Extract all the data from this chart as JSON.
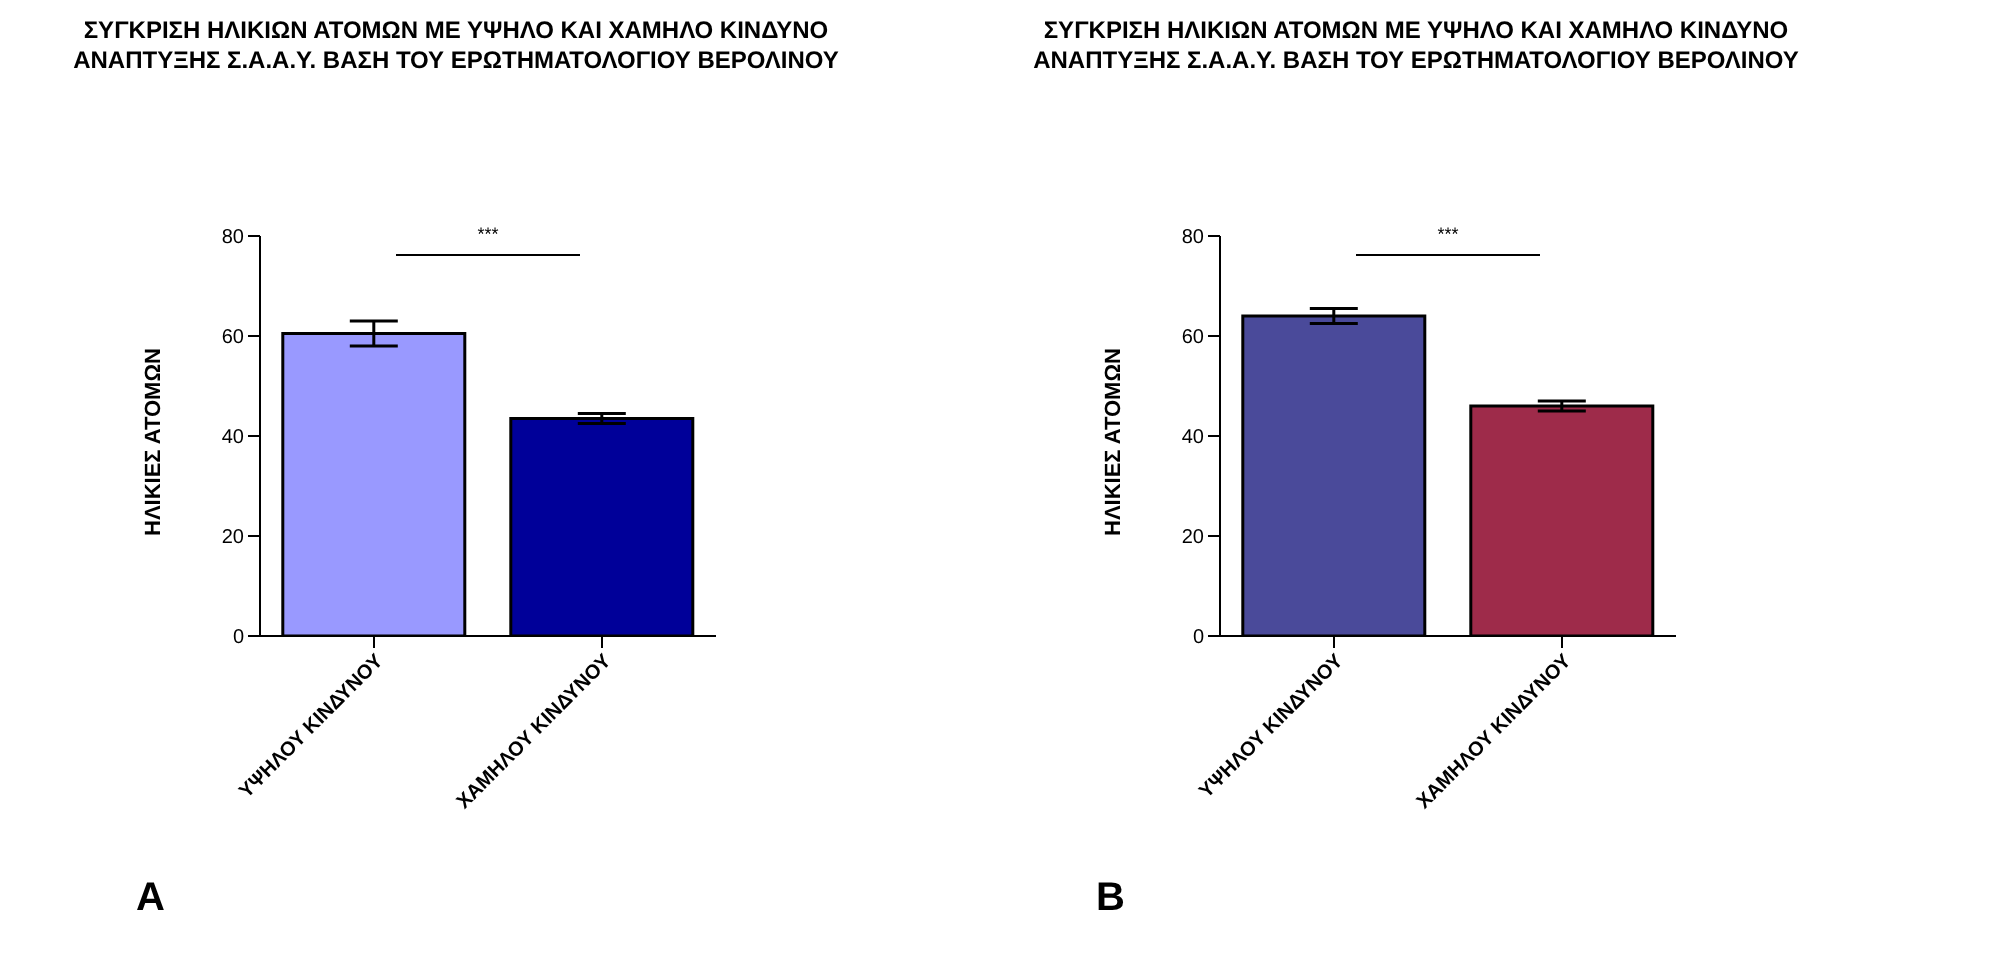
{
  "chart_data": [
    {
      "type": "bar",
      "title": "ΣΥΓΚΡΙΣΗ ΗΛΙΚΙΩΝ ΑΤΟΜΩΝ ΜΕ ΥΨΗΛΟ ΚΑΙ ΧΑΜΗΛΟ ΚΙΝΔΥΝΟ ΑΝΑΠΤΥΞΗΣ Σ.Α.Α.Υ. ΒΑΣΗ ΤΟΥ ΕΡΩΤΗΜΑΤΟΛΟΓΙΟΥ ΒΕΡΟΛΙΝΟΥ",
      "ylabel": "ΗΛΙΚΙΕΣ ΑΤΟΜΩΝ",
      "categories": [
        "ΥΨΗΛΟΥ ΚΙΝΔΥΝΟΥ",
        "ΧΑΜΗΛΟΥ ΚΙΝΔΥΝΟΥ"
      ],
      "values": [
        60.5,
        43.5
      ],
      "errors": [
        2.5,
        1
      ],
      "colors": [
        "#9999ff",
        "#000099"
      ],
      "ylim": [
        0,
        80
      ],
      "yticks": [
        0,
        20,
        40,
        60,
        80
      ],
      "annotations": [
        "***",
        "A"
      ]
    },
    {
      "type": "bar",
      "title": "ΣΥΓΚΡΙΣΗ ΗΛΙΚΙΩΝ ΑΤΟΜΩΝ ΜΕ ΥΨΗΛΟ ΚΑΙ ΧΑΜΗΛΟ ΚΙΝΔΥΝΟ ΑΝΑΠΤΥΞΗΣ Σ.Α.Α.Υ. ΒΑΣΗ ΤΟΥ ΕΡΩΤΗΜΑΤΟΛΟΓΙΟΥ ΒΕΡΟΛΙΝΟΥ",
      "ylabel": "ΗΛΙΚΙΕΣ ΑΤΟΜΩΝ",
      "categories": [
        "ΥΨΗΛΟΥ ΚΙΝΔΥΝΟΥ",
        "ΧΑΜΗΛΟΥ ΚΙΝΔΥΝΟΥ"
      ],
      "values": [
        64,
        46
      ],
      "errors": [
        1.5,
        1
      ],
      "colors": [
        "#4a4a9a",
        "#9e2b4a"
      ],
      "ylim": [
        0,
        80
      ],
      "yticks": [
        0,
        20,
        40,
        60,
        80
      ],
      "annotations": [
        "***",
        "B"
      ]
    }
  ]
}
